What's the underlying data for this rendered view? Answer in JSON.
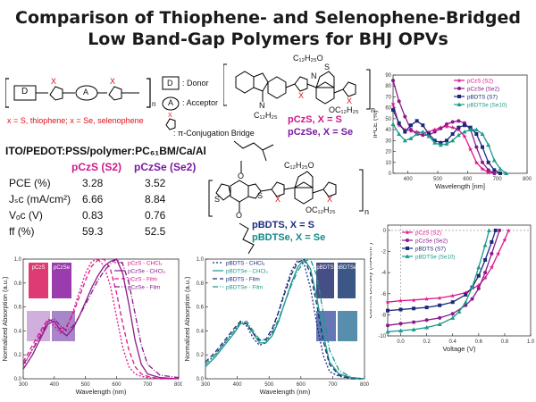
{
  "title": {
    "line1": "Comparison of Thiophene- and Selenophene-Bridged",
    "line2": "Low Band-Gap Polymers for BHJ OPVs"
  },
  "scheme": {
    "donor_box": "D",
    "acceptor_box": "A",
    "x_label": "X",
    "n_label": "n",
    "legend_donor": ": Donor",
    "legend_acceptor": ": Acceptor",
    "legend_bridge": ": π-Conjugation Bridge",
    "x_def_prefix": "x = S, thiophene; ",
    "x_def_suffix": "x = Se, selenophene"
  },
  "structures": {
    "top_chain": "C₁₂H₂₅",
    "top_s": "S",
    "top_n": "N",
    "top_n2": "N",
    "top_x1": "X",
    "top_x2": "X",
    "top_oc1": "OC₁₂H₂₅",
    "top_oc2": "C₁₂H₂₅O",
    "top_n_sub": "n",
    "pczs_label": "pCzS, X = S",
    "pczse_label": "pCzSe, X = Se",
    "bottom_o1": "O",
    "bottom_o2": "O",
    "bottom_s1": "S",
    "bottom_s2": "S",
    "bottom_x1": "X",
    "bottom_x2": "X",
    "bottom_oc1": "OC₁₂H₂₅",
    "bottom_oc2": "C₁₂H₂₅O",
    "bottom_n_sub": "n",
    "pbdts_label": "pBDTS, X = S",
    "pbdtse_label": "pBDTSe, X = Se"
  },
  "device": {
    "stack": "ITO/PEDOT:PSS/polymer:PC₆₁BM/Ca/Al",
    "col1": "pCzS (S2)",
    "col2": "pCzSe (Se2)",
    "rows": [
      {
        "label": "PCE (%)",
        "v1": "3.28",
        "v2": "3.52"
      },
      {
        "label": "Jₛᴄ (mA/cm²)",
        "v1": "6.66",
        "v2": "8.84"
      },
      {
        "label": "Vₒᴄ (V)",
        "v1": "0.83",
        "v2": "0.76"
      },
      {
        "label": "ff (%)",
        "v1": "59.3",
        "v2": "52.5"
      }
    ]
  },
  "colors": {
    "pczs": "#e0148c",
    "pczse": "#8a1a8a",
    "pbdts": "#1a2a7a",
    "pbdtse": "#1a9a8a",
    "red": "#e0101a"
  },
  "chart_data": [
    {
      "type": "line",
      "ylabel": "IPCE (%)",
      "xlabel": "Wavelength [nm]",
      "xlim": [
        350,
        800
      ],
      "ylim": [
        0,
        90
      ],
      "xticks": [
        "400",
        "500",
        "600",
        "700",
        "800"
      ],
      "yticks": [
        "0",
        "10",
        "20",
        "30",
        "40",
        "50",
        "60",
        "70",
        "80",
        "90"
      ],
      "legend": "top-right",
      "series": [
        {
          "name": "pCzS (S2)",
          "color": "#e0148c",
          "marker": "star",
          "x": [
            350,
            370,
            390,
            410,
            430,
            450,
            470,
            490,
            510,
            530,
            550,
            570,
            590,
            610,
            630,
            650,
            670,
            690
          ],
          "y": [
            64,
            44,
            40,
            39,
            38,
            37,
            38,
            40,
            42,
            43,
            42,
            40,
            34,
            22,
            10,
            4,
            1,
            0
          ]
        },
        {
          "name": "pCzSe (Se2)",
          "color": "#8a1a8a",
          "marker": "circle",
          "x": [
            350,
            370,
            390,
            410,
            430,
            450,
            470,
            490,
            510,
            530,
            550,
            570,
            590,
            610,
            630,
            650,
            670,
            690
          ],
          "y": [
            85,
            66,
            52,
            40,
            36,
            35,
            35,
            38,
            41,
            45,
            47,
            48,
            46,
            40,
            24,
            10,
            3,
            0
          ]
        },
        {
          "name": "pBDTS (S7)",
          "color": "#1a2a7a",
          "marker": "square",
          "x": [
            350,
            370,
            390,
            410,
            430,
            450,
            470,
            490,
            510,
            530,
            550,
            570,
            590,
            610,
            630,
            650,
            670,
            690,
            710
          ],
          "y": [
            58,
            46,
            38,
            44,
            48,
            44,
            36,
            30,
            28,
            30,
            36,
            42,
            44,
            42,
            36,
            24,
            10,
            3,
            0
          ]
        },
        {
          "name": "pBDTSe (Se10)",
          "color": "#1a9a8a",
          "marker": "triangle",
          "x": [
            350,
            370,
            390,
            410,
            430,
            450,
            470,
            490,
            510,
            530,
            550,
            570,
            590,
            610,
            630,
            650,
            670,
            690,
            710,
            730
          ],
          "y": [
            45,
            36,
            30,
            32,
            36,
            38,
            34,
            28,
            26,
            27,
            30,
            35,
            38,
            40,
            40,
            36,
            26,
            12,
            4,
            0
          ]
        }
      ]
    },
    {
      "type": "line",
      "ylabel": "Normalized Absorption (a.u.)",
      "xlabel": "Wavelength (nm)",
      "xlim": [
        300,
        800
      ],
      "ylim": [
        0,
        1.0
      ],
      "xticks": [
        "300",
        "400",
        "500",
        "600",
        "700",
        "800"
      ],
      "yticks": [
        "0.0",
        "0.2",
        "0.4",
        "0.6",
        "0.8",
        "1.0"
      ],
      "legend": "top-right",
      "photo_labels": [
        "pCzS",
        "pCzSe"
      ],
      "series": [
        {
          "name": "pCzS - CHCl₃",
          "color": "#e0148c",
          "dash": "2,2",
          "x": [
            300,
            330,
            360,
            380,
            400,
            420,
            440,
            460,
            480,
            500,
            520,
            540,
            560,
            580,
            600,
            620,
            640,
            660,
            680,
            700,
            740,
            800
          ],
          "y": [
            0.1,
            0.25,
            0.4,
            0.48,
            0.44,
            0.38,
            0.42,
            0.56,
            0.72,
            0.88,
            0.98,
            1.0,
            0.94,
            0.78,
            0.52,
            0.26,
            0.1,
            0.04,
            0.02,
            0.01,
            0.0,
            0.0
          ]
        },
        {
          "name": "pCzSe - CHCl₃",
          "color": "#8a1a8a",
          "dash": "",
          "x": [
            300,
            330,
            360,
            380,
            400,
            420,
            440,
            460,
            480,
            500,
            520,
            540,
            560,
            580,
            600,
            620,
            640,
            660,
            680,
            700,
            740,
            800
          ],
          "y": [
            0.08,
            0.2,
            0.36,
            0.46,
            0.48,
            0.4,
            0.36,
            0.42,
            0.52,
            0.64,
            0.76,
            0.86,
            0.94,
            0.98,
            1.0,
            0.88,
            0.62,
            0.32,
            0.12,
            0.04,
            0.01,
            0.0
          ]
        },
        {
          "name": "pCzS - Film",
          "color": "#e0148c",
          "dash": "5,3",
          "x": [
            300,
            330,
            360,
            380,
            400,
            420,
            440,
            460,
            480,
            500,
            520,
            540,
            560,
            580,
            600,
            620,
            640,
            660,
            680,
            700,
            740,
            800
          ],
          "y": [
            0.14,
            0.28,
            0.42,
            0.5,
            0.47,
            0.42,
            0.44,
            0.54,
            0.68,
            0.82,
            0.94,
            0.99,
            1.0,
            0.92,
            0.72,
            0.46,
            0.24,
            0.1,
            0.04,
            0.02,
            0.0,
            0.0
          ]
        },
        {
          "name": "pCzSe - Film",
          "color": "#8a1a8a",
          "dash": "6,2,1,2",
          "x": [
            300,
            330,
            360,
            380,
            400,
            420,
            440,
            460,
            480,
            500,
            520,
            540,
            560,
            580,
            600,
            620,
            640,
            660,
            680,
            700,
            740,
            800
          ],
          "y": [
            0.12,
            0.24,
            0.38,
            0.48,
            0.5,
            0.44,
            0.4,
            0.44,
            0.52,
            0.62,
            0.72,
            0.82,
            0.9,
            0.96,
            1.0,
            0.96,
            0.8,
            0.54,
            0.28,
            0.12,
            0.03,
            0.01
          ]
        }
      ]
    },
    {
      "type": "line",
      "ylabel": "Normalized Absorption (a.u.)",
      "xlabel": "Wavelength (nm)",
      "xlim": [
        300,
        800
      ],
      "ylim": [
        0,
        1.0
      ],
      "xticks": [
        "300",
        "400",
        "500",
        "600",
        "700",
        "800"
      ],
      "yticks": [
        "0.0",
        "0.2",
        "0.4",
        "0.6",
        "0.8",
        "1.0"
      ],
      "legend": "top-left",
      "photo_labels": [
        "pBDTS",
        "pBDTSe"
      ],
      "series": [
        {
          "name": "pBDTS - CHCl₃",
          "color": "#1a2a7a",
          "dash": "2,2",
          "x": [
            300,
            330,
            360,
            390,
            410,
            430,
            450,
            470,
            490,
            510,
            530,
            550,
            570,
            590,
            610,
            630,
            650,
            670,
            690,
            720,
            760,
            800
          ],
          "y": [
            0.12,
            0.2,
            0.3,
            0.4,
            0.47,
            0.44,
            0.34,
            0.28,
            0.3,
            0.4,
            0.56,
            0.74,
            0.9,
            0.99,
            0.96,
            0.76,
            0.46,
            0.2,
            0.06,
            0.02,
            0.0,
            0.0
          ]
        },
        {
          "name": "pBDTSe - CHCl₃",
          "color": "#1a9a8a",
          "dash": "",
          "x": [
            300,
            330,
            360,
            390,
            410,
            430,
            450,
            470,
            490,
            510,
            530,
            550,
            570,
            590,
            610,
            630,
            650,
            670,
            690,
            720,
            760,
            800
          ],
          "y": [
            0.1,
            0.18,
            0.28,
            0.38,
            0.46,
            0.46,
            0.38,
            0.3,
            0.3,
            0.36,
            0.48,
            0.64,
            0.8,
            0.93,
            1.0,
            0.92,
            0.68,
            0.38,
            0.14,
            0.04,
            0.01,
            0.0
          ]
        },
        {
          "name": "pBDTS - Film",
          "color": "#1a2a7a",
          "dash": "5,3",
          "x": [
            300,
            330,
            360,
            390,
            410,
            430,
            450,
            470,
            490,
            510,
            530,
            550,
            570,
            590,
            610,
            630,
            650,
            670,
            690,
            720,
            760,
            800
          ],
          "y": [
            0.14,
            0.22,
            0.32,
            0.42,
            0.48,
            0.46,
            0.38,
            0.32,
            0.33,
            0.42,
            0.56,
            0.72,
            0.87,
            0.97,
            1.0,
            0.88,
            0.62,
            0.32,
            0.12,
            0.03,
            0.0,
            0.0
          ]
        },
        {
          "name": "pBDTSe - Film",
          "color": "#1a9a8a",
          "dash": "6,2,1,2",
          "x": [
            300,
            330,
            360,
            390,
            410,
            430,
            450,
            470,
            490,
            510,
            530,
            550,
            570,
            590,
            610,
            630,
            650,
            670,
            690,
            720,
            760,
            800
          ],
          "y": [
            0.12,
            0.2,
            0.3,
            0.4,
            0.47,
            0.48,
            0.4,
            0.33,
            0.32,
            0.38,
            0.5,
            0.64,
            0.78,
            0.9,
            0.98,
            1.0,
            0.86,
            0.56,
            0.24,
            0.07,
            0.01,
            0.0
          ]
        }
      ]
    },
    {
      "type": "line",
      "ylabel": "Current Density (mA/cm²)",
      "xlabel": "Voltage (V)",
      "xlim": [
        -0.1,
        1.0
      ],
      "ylim": [
        -10,
        0.5
      ],
      "xticks": [
        "0.0",
        "0.2",
        "0.4",
        "0.6",
        "0.8",
        "1.0"
      ],
      "yticks": [
        "0",
        "-2",
        "-4",
        "-6",
        "-8",
        "-10"
      ],
      "legend": "top-left",
      "series": [
        {
          "name": "pCzS (S2)",
          "color": "#e0148c",
          "marker": "star",
          "x": [
            -0.1,
            0.0,
            0.1,
            0.2,
            0.3,
            0.4,
            0.5,
            0.6,
            0.65,
            0.7,
            0.75,
            0.8,
            0.83
          ],
          "y": [
            -6.8,
            -6.66,
            -6.6,
            -6.5,
            -6.4,
            -6.2,
            -5.9,
            -5.2,
            -4.5,
            -3.5,
            -2.2,
            -0.9,
            0.0
          ]
        },
        {
          "name": "pCzSe (Se2)",
          "color": "#8a1a8a",
          "marker": "circle",
          "x": [
            -0.1,
            0.0,
            0.1,
            0.2,
            0.3,
            0.4,
            0.5,
            0.55,
            0.6,
            0.65,
            0.7,
            0.76
          ],
          "y": [
            -9.0,
            -8.84,
            -8.7,
            -8.5,
            -8.3,
            -7.9,
            -7.1,
            -6.5,
            -5.5,
            -4.0,
            -2.2,
            0.0
          ]
        },
        {
          "name": "pBDTS (S7)",
          "color": "#1a2a7a",
          "marker": "square",
          "x": [
            -0.1,
            0.0,
            0.1,
            0.2,
            0.3,
            0.4,
            0.5,
            0.55,
            0.6,
            0.65,
            0.7,
            0.73
          ],
          "y": [
            -7.6,
            -7.5,
            -7.4,
            -7.3,
            -7.1,
            -6.8,
            -6.1,
            -5.4,
            -4.3,
            -2.8,
            -1.1,
            0.0
          ]
        },
        {
          "name": "pBDTSe (Se10)",
          "color": "#1a9a8a",
          "marker": "triangle",
          "x": [
            -0.1,
            0.0,
            0.1,
            0.2,
            0.3,
            0.4,
            0.45,
            0.5,
            0.55,
            0.6,
            0.65,
            0.68
          ],
          "y": [
            -9.6,
            -9.5,
            -9.4,
            -9.2,
            -8.9,
            -8.3,
            -7.7,
            -6.8,
            -5.4,
            -3.5,
            -1.4,
            0.0
          ]
        }
      ]
    }
  ]
}
